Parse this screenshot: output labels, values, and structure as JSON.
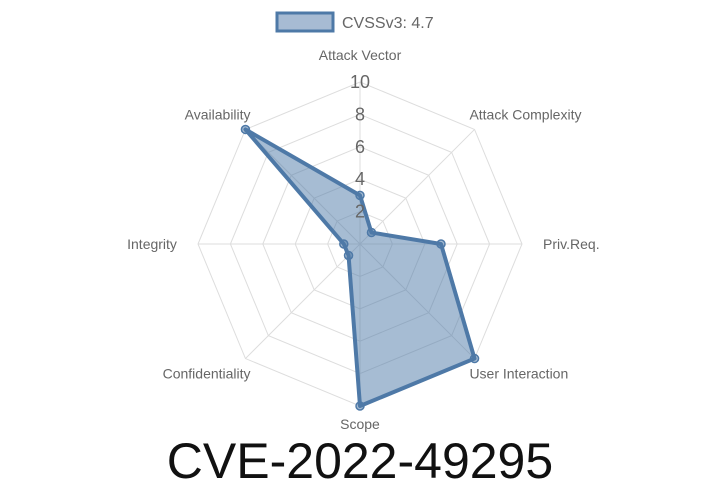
{
  "chart_data": {
    "type": "radar",
    "title": "CVE-2022-49295",
    "legend": {
      "label": "CVSSv3: 4.7",
      "placement": "top"
    },
    "axes": [
      "Attack Vector",
      "Attack Complexity",
      "Priv.Req.",
      "User Interaction",
      "Scope",
      "Confidentiality",
      "Integrity",
      "Availability"
    ],
    "series": [
      {
        "name": "CVSSv3: 4.7",
        "values": [
          3,
          1,
          5,
          10,
          10,
          1,
          1,
          10
        ]
      }
    ],
    "rlim": [
      0,
      10
    ],
    "ticks": [
      2,
      4,
      6,
      8,
      10
    ],
    "grid": true,
    "colors": {
      "line": "#4e79a7",
      "fill": "#4e79a780",
      "grid": "#dddddd"
    }
  }
}
